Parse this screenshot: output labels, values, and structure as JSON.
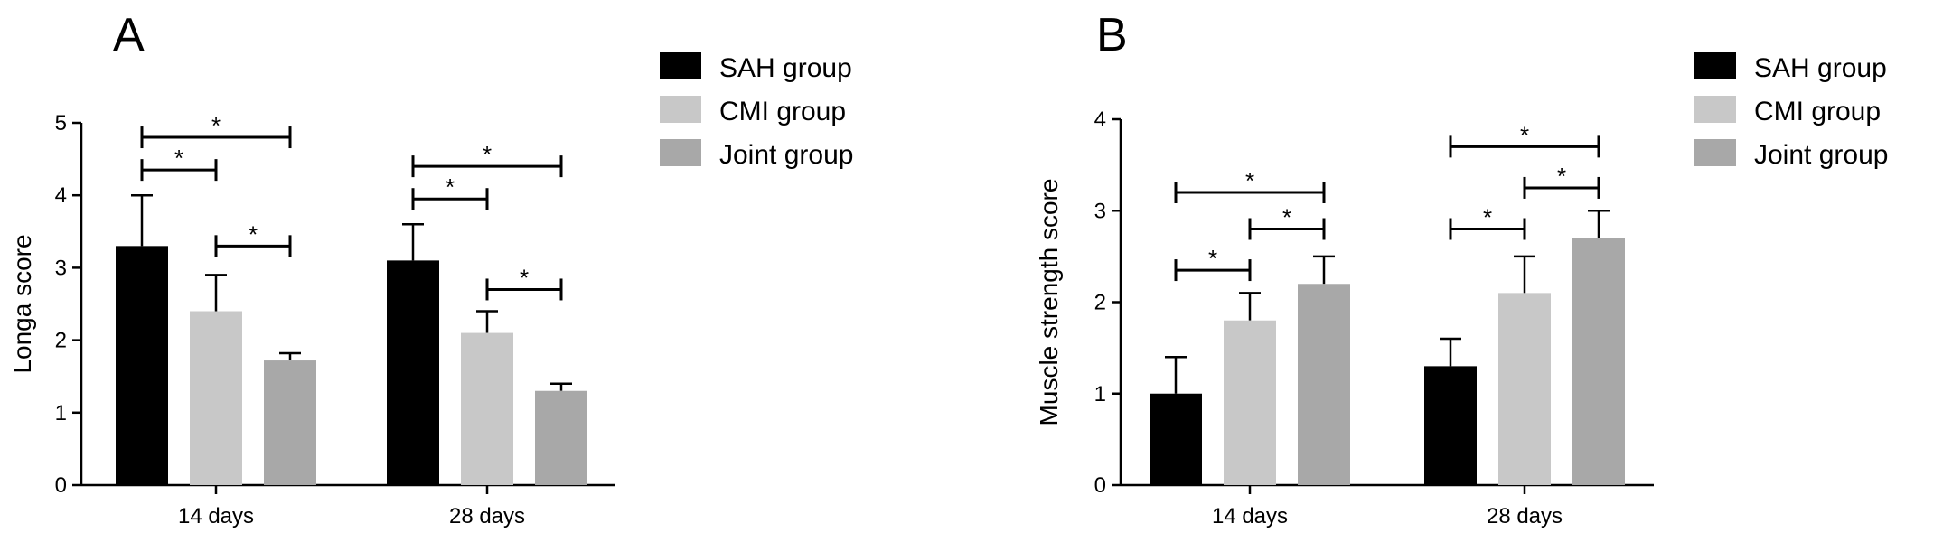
{
  "colors": {
    "sah": "#000000",
    "cmi": "#c8c8c8",
    "joint": "#a8a8a8",
    "axis": "#000000"
  },
  "chart_data": [
    {
      "panel": "A",
      "type": "bar",
      "categories": [
        "14 days",
        "28 days"
      ],
      "ylabel": "Longa score",
      "xlabel": "",
      "ylim": [
        0,
        5
      ],
      "yticks": [
        "0",
        "1",
        "2",
        "3",
        "4",
        "5"
      ],
      "series": [
        {
          "name": "SAH group",
          "values": [
            3.3,
            3.1
          ],
          "errors": [
            0.7,
            0.5
          ]
        },
        {
          "name": "CMI group",
          "values": [
            2.4,
            2.1
          ],
          "errors": [
            0.5,
            0.3
          ]
        },
        {
          "name": "Joint group",
          "values": [
            1.72,
            1.3
          ],
          "errors": [
            0.1,
            0.1
          ]
        }
      ],
      "significance": [
        {
          "category": 0,
          "from": 0,
          "to": 2,
          "y": 4.8,
          "label": "*"
        },
        {
          "category": 0,
          "from": 0,
          "to": 1,
          "y": 4.35,
          "label": "*"
        },
        {
          "category": 0,
          "from": 1,
          "to": 2,
          "y": 3.3,
          "label": "*"
        },
        {
          "category": 1,
          "from": 0,
          "to": 2,
          "y": 4.4,
          "label": "*"
        },
        {
          "category": 1,
          "from": 0,
          "to": 1,
          "y": 3.95,
          "label": "*"
        },
        {
          "category": 1,
          "from": 1,
          "to": 2,
          "y": 2.7,
          "label": "*"
        }
      ]
    },
    {
      "panel": "B",
      "type": "bar",
      "categories": [
        "14 days",
        "28 days"
      ],
      "ylabel": "Muscle strength score",
      "xlabel": "",
      "ylim": [
        0,
        4
      ],
      "yticks": [
        "0",
        "1",
        "2",
        "3",
        "4"
      ],
      "series": [
        {
          "name": "SAH group",
          "values": [
            1.0,
            1.3
          ],
          "errors": [
            0.4,
            0.3
          ]
        },
        {
          "name": "CMI group",
          "values": [
            1.8,
            2.1
          ],
          "errors": [
            0.3,
            0.4
          ]
        },
        {
          "name": "Joint group",
          "values": [
            2.2,
            2.7
          ],
          "errors": [
            0.3,
            0.3
          ]
        }
      ],
      "significance": [
        {
          "category": 0,
          "from": 0,
          "to": 2,
          "y": 3.2,
          "label": "*"
        },
        {
          "category": 0,
          "from": 1,
          "to": 2,
          "y": 2.8,
          "label": "*"
        },
        {
          "category": 0,
          "from": 0,
          "to": 1,
          "y": 2.35,
          "label": "*"
        },
        {
          "category": 1,
          "from": 0,
          "to": 2,
          "y": 3.7,
          "label": "*"
        },
        {
          "category": 1,
          "from": 1,
          "to": 2,
          "y": 3.25,
          "label": "*"
        },
        {
          "category": 1,
          "from": 0,
          "to": 1,
          "y": 2.8,
          "label": "*"
        }
      ]
    }
  ]
}
